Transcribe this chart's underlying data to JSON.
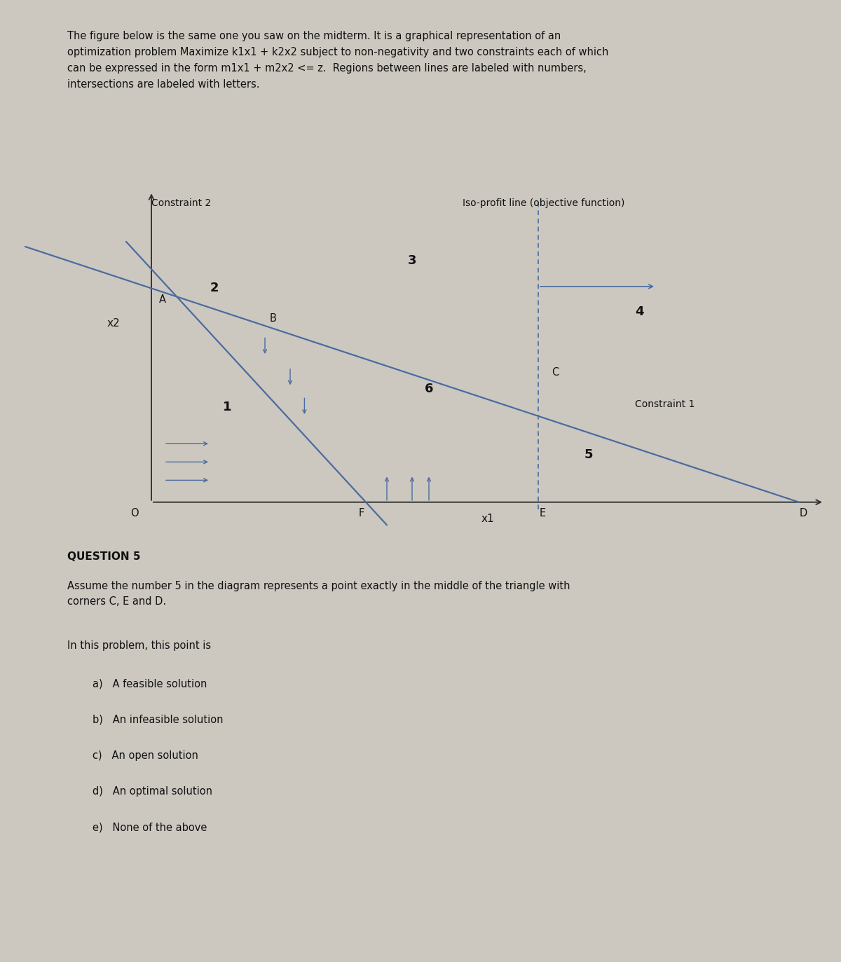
{
  "bg_color": "#ccc8c0",
  "fig_width": 12.0,
  "fig_height": 13.73,
  "header_text_lines": [
    "The figure below is the same one you saw on the midterm. It is a graphical representation of an",
    "optimization problem Maximize k1x1 + k2x2 subject to non-negativity and two constraints each of which",
    "can be expressed in the form m1x1 + m2x2 <= z.  Regions between lines are labeled with numbers,",
    "intersections are labeled with letters."
  ],
  "question_title": "QUESTION 5",
  "question_text_lines": [
    "Assume the number 5 in the diagram represents a point exactly in the middle of the triangle with",
    "corners C, E and D."
  ],
  "question_sub": "In this problem, this point is",
  "choices": [
    "a)   A feasible solution",
    "b)   An infeasible solution",
    "c)   An open solution",
    "d)   An optimal solution",
    "e)   None of the above"
  ],
  "line_color": "#4a6c9e",
  "axis_color": "#333333",
  "label_color": "#111111",
  "text_color": "#111111",
  "constraint2_label": "Constraint 2",
  "constraint1_label": "Constraint 1",
  "isoprofit_label": "Iso-profit line (objective function)",
  "x2_label": "x2",
  "x1_label": "x1",
  "origin_label": "O"
}
